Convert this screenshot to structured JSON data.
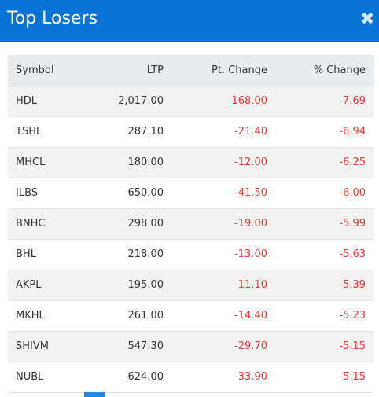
{
  "header": {
    "title": "Top Losers",
    "close_glyph": "✖"
  },
  "table": {
    "columns": [
      "Symbol",
      "LTP",
      "Pt. Change",
      "% Change"
    ],
    "rows": [
      {
        "symbol": "HDL",
        "ltp": "2,017.00",
        "pt_change": "-168.00",
        "pct_change": "-7.69"
      },
      {
        "symbol": "TSHL",
        "ltp": "287.10",
        "pt_change": "-21.40",
        "pct_change": "-6.94"
      },
      {
        "symbol": "MHCL",
        "ltp": "180.00",
        "pt_change": "-12.00",
        "pct_change": "-6.25"
      },
      {
        "symbol": "ILBS",
        "ltp": "650.00",
        "pt_change": "-41.50",
        "pct_change": "-6.00"
      },
      {
        "symbol": "BNHC",
        "ltp": "298.00",
        "pt_change": "-19.00",
        "pct_change": "-5.99"
      },
      {
        "symbol": "BHL",
        "ltp": "218.00",
        "pt_change": "-13.00",
        "pct_change": "-5.63"
      },
      {
        "symbol": "AKPL",
        "ltp": "195.00",
        "pt_change": "-11.10",
        "pct_change": "-5.39"
      },
      {
        "symbol": "MKHL",
        "ltp": "261.00",
        "pt_change": "-14.40",
        "pct_change": "-5.23"
      },
      {
        "symbol": "SHIVM",
        "ltp": "547.30",
        "pt_change": "-29.70",
        "pct_change": "-5.15"
      },
      {
        "symbol": "NUBL",
        "ltp": "624.00",
        "pt_change": "-33.90",
        "pct_change": "-5.15"
      }
    ]
  },
  "colors": {
    "header_bg": "#0b73d6",
    "negative": "#e53935",
    "accent": "#1e88e5"
  }
}
